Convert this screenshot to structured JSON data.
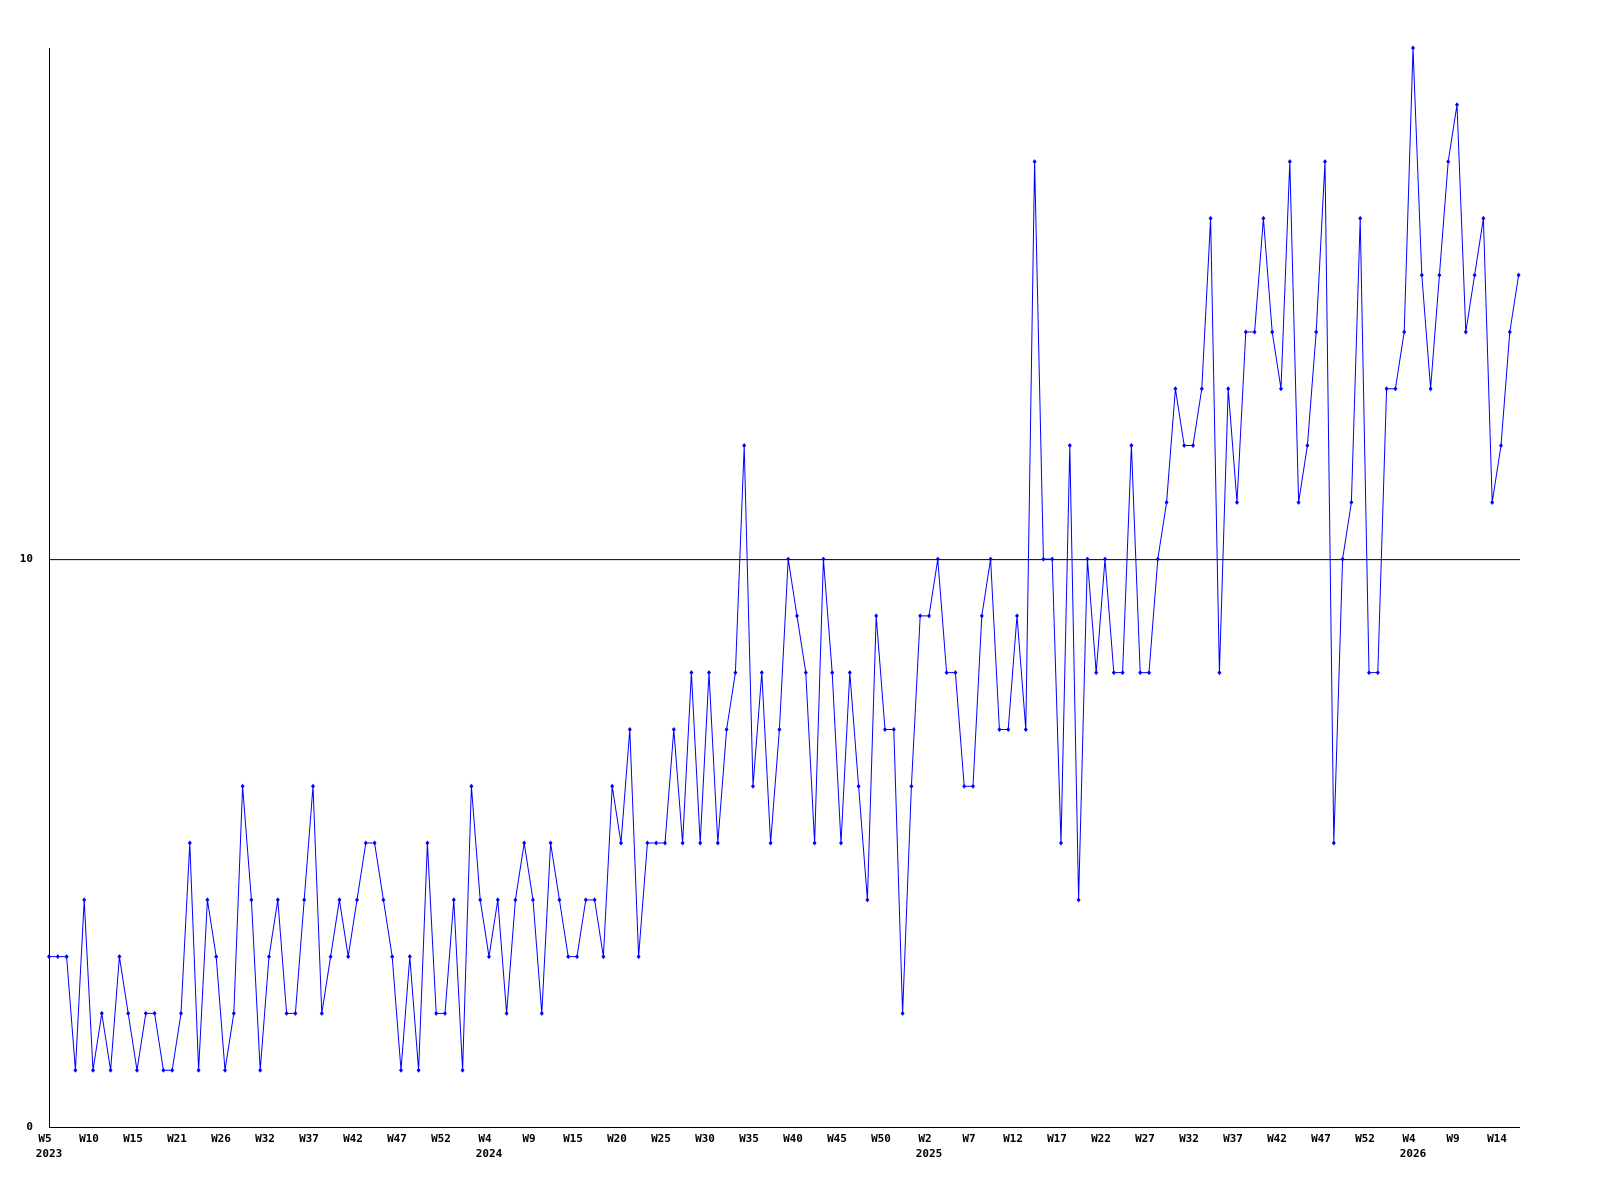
{
  "chart_data": {
    "type": "line",
    "color": "#0000ff",
    "grid": true,
    "ylim": [
      0,
      19
    ],
    "yticks": [
      0,
      10
    ],
    "categories": [
      "W5",
      null,
      null,
      null,
      null,
      "W10",
      null,
      null,
      null,
      null,
      "W15",
      null,
      null,
      null,
      null,
      "W21",
      null,
      null,
      null,
      null,
      "W26",
      null,
      null,
      null,
      null,
      "W32",
      null,
      null,
      null,
      null,
      "W37",
      null,
      null,
      null,
      null,
      "W42",
      null,
      null,
      null,
      null,
      "W47",
      null,
      null,
      null,
      null,
      "W52",
      null,
      null,
      null,
      null,
      "W4",
      null,
      null,
      null,
      null,
      "W9",
      null,
      null,
      null,
      null,
      "W15",
      null,
      null,
      null,
      null,
      "W20",
      null,
      null,
      null,
      null,
      "W25",
      null,
      null,
      null,
      null,
      "W30",
      null,
      null,
      null,
      null,
      "W35",
      null,
      null,
      null,
      null,
      "W40",
      null,
      null,
      null,
      null,
      "W45",
      null,
      null,
      null,
      null,
      "W50",
      null,
      null,
      null,
      null,
      "W2",
      null,
      null,
      null,
      null,
      "W7",
      null,
      null,
      null,
      null,
      "W12",
      null,
      null,
      null,
      null,
      "W17",
      null,
      null,
      null,
      null,
      "W22",
      null,
      null,
      null,
      null,
      "W27",
      null,
      null,
      null,
      null,
      "W32",
      null,
      null,
      null,
      null,
      "W37",
      null,
      null,
      null,
      null,
      "W42",
      null,
      null,
      null,
      null,
      "W47",
      null,
      null,
      null,
      null,
      "W52",
      null,
      null,
      null,
      null,
      "W4",
      null,
      null,
      null,
      null,
      "W9",
      null,
      null,
      null,
      null,
      "W14",
      null,
      null
    ],
    "category_years": [
      "2023",
      null,
      null,
      null,
      null,
      null,
      null,
      null,
      null,
      null,
      null,
      null,
      null,
      null,
      null,
      null,
      null,
      null,
      null,
      null,
      null,
      null,
      null,
      null,
      null,
      null,
      null,
      null,
      null,
      null,
      null,
      null,
      null,
      null,
      null,
      null,
      null,
      null,
      null,
      null,
      null,
      null,
      null,
      null,
      null,
      null,
      null,
      null,
      null,
      null,
      "2024",
      null,
      null,
      null,
      null,
      null,
      null,
      null,
      null,
      null,
      null,
      null,
      null,
      null,
      null,
      null,
      null,
      null,
      null,
      null,
      null,
      null,
      null,
      null,
      null,
      null,
      null,
      null,
      null,
      null,
      null,
      null,
      null,
      null,
      null,
      null,
      null,
      null,
      null,
      null,
      null,
      null,
      null,
      null,
      null,
      null,
      null,
      null,
      null,
      null,
      "2025",
      null,
      null,
      null,
      null,
      null,
      null,
      null,
      null,
      null,
      null,
      null,
      null,
      null,
      null,
      null,
      null,
      null,
      null,
      null,
      null,
      null,
      null,
      null,
      null,
      null,
      null,
      null,
      null,
      null,
      null,
      null,
      null,
      null,
      null,
      null,
      null,
      null,
      null,
      null,
      null,
      null,
      null,
      null,
      null,
      null,
      null,
      null,
      null,
      null,
      null,
      null,
      null,
      null,
      null,
      "2026",
      null,
      null,
      null,
      null,
      null,
      null,
      null,
      null,
      null,
      null,
      null,
      null
    ],
    "values": [
      3,
      3,
      3,
      1,
      4,
      1,
      2,
      1,
      3,
      2,
      1,
      2,
      2,
      1,
      1,
      2,
      5,
      1,
      4,
      3,
      1,
      2,
      6,
      4,
      1,
      3,
      4,
      2,
      2,
      4,
      6,
      2,
      3,
      4,
      3,
      4,
      5,
      5,
      4,
      3,
      1,
      3,
      1,
      5,
      2,
      2,
      4,
      1,
      6,
      4,
      3,
      4,
      2,
      4,
      5,
      4,
      2,
      5,
      4,
      3,
      3,
      4,
      4,
      3,
      6,
      5,
      7,
      3,
      5,
      5,
      5,
      7,
      5,
      8,
      5,
      8,
      5,
      7,
      8,
      12,
      6,
      8,
      5,
      7,
      10,
      9,
      8,
      5,
      10,
      8,
      5,
      8,
      6,
      4,
      9,
      7,
      7,
      2,
      6,
      9,
      9,
      10,
      8,
      8,
      6,
      6,
      9,
      10,
      7,
      7,
      9,
      7,
      17,
      10,
      10,
      5,
      12,
      4,
      10,
      8,
      10,
      8,
      8,
      12,
      8,
      8,
      10,
      11,
      13,
      12,
      12,
      13,
      16,
      8,
      13,
      11,
      14,
      14,
      16,
      14,
      13,
      17,
      11,
      12,
      14,
      17,
      5,
      10,
      11,
      16,
      8,
      8,
      13,
      13,
      14,
      19,
      15,
      13,
      15,
      17,
      18,
      14,
      15,
      16,
      11,
      12,
      14,
      15
    ]
  }
}
